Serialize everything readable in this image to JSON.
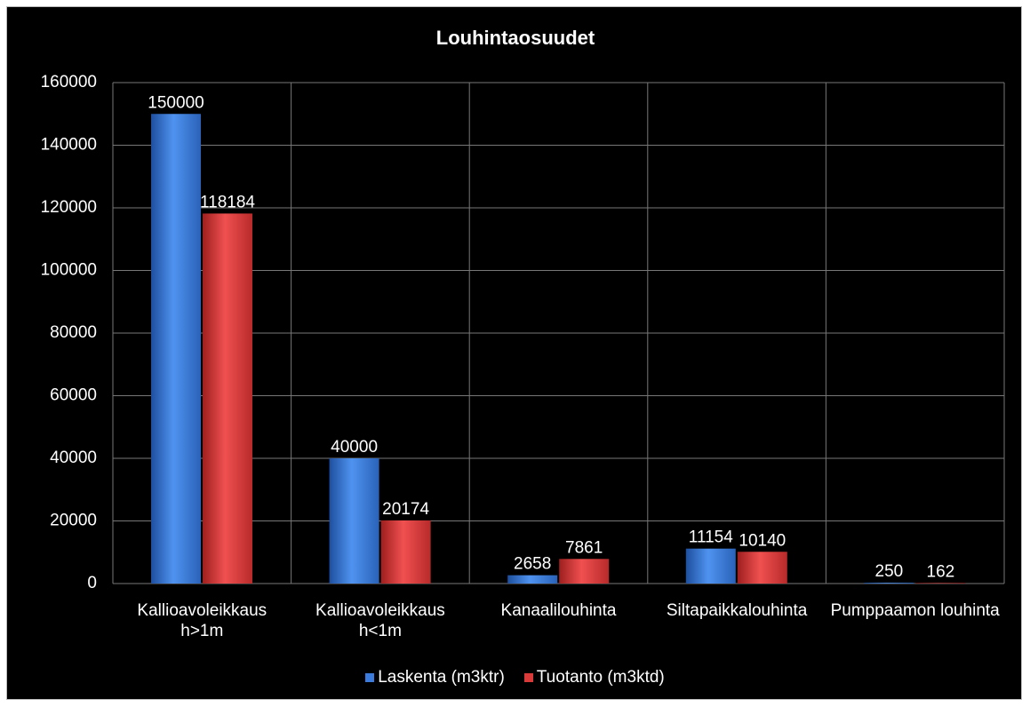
{
  "chart_data": {
    "type": "bar",
    "title": "Louhintaosuudet",
    "categories": [
      "Kallioavoleikkaus h>1m",
      "Kallioavoleikkaus h<1m",
      "Kanaalilouhinta",
      "Siltapaikkalouhinta",
      "Pumppaamon louhinta"
    ],
    "series": [
      {
        "name": "Laskenta (m3ktr)",
        "color": "#3a7bdc",
        "values": [
          150000,
          40000,
          2658,
          11154,
          250
        ]
      },
      {
        "name": "Tuotanto (m3ktd)",
        "color": "#d83a3a",
        "values": [
          118184,
          20174,
          7861,
          10140,
          162
        ]
      }
    ],
    "ylim": [
      0,
      160000
    ],
    "yticks": [
      0,
      20000,
      40000,
      60000,
      80000,
      100000,
      120000,
      140000,
      160000
    ],
    "grid": true,
    "legend": "bottom"
  }
}
